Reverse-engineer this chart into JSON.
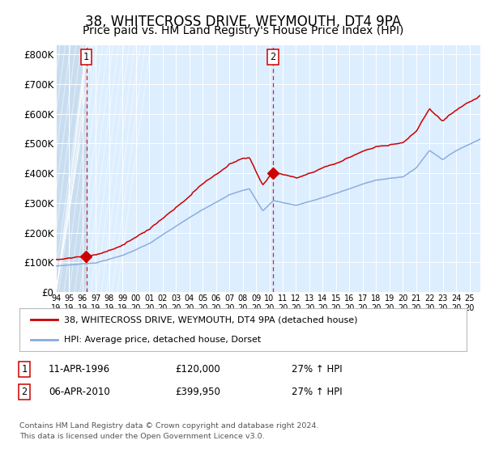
{
  "title": "38, WHITECROSS DRIVE, WEYMOUTH, DT4 9PA",
  "subtitle": "Price paid vs. HM Land Registry's House Price Index (HPI)",
  "title_fontsize": 12,
  "subtitle_fontsize": 10,
  "background_color": "#ffffff",
  "plot_bg_color": "#ddeeff",
  "legend_line1": "38, WHITECROSS DRIVE, WEYMOUTH, DT4 9PA (detached house)",
  "legend_line2": "HPI: Average price, detached house, Dorset",
  "red_line_color": "#cc0000",
  "blue_line_color": "#88aadd",
  "purchase1_decimal": 1996.28,
  "purchase1_price": 120000,
  "purchase2_decimal": 2010.27,
  "purchase2_price": 399950,
  "xlim": [
    1994.0,
    2025.8
  ],
  "ylim": [
    0,
    830000
  ],
  "yticks": [
    0,
    100000,
    200000,
    300000,
    400000,
    500000,
    600000,
    700000,
    800000
  ],
  "ytick_labels": [
    "£0",
    "£100K",
    "£200K",
    "£300K",
    "£400K",
    "£500K",
    "£600K",
    "£700K",
    "£800K"
  ],
  "xtick_years": [
    1994,
    1995,
    1996,
    1997,
    1998,
    1999,
    2000,
    2001,
    2002,
    2003,
    2004,
    2005,
    2006,
    2007,
    2008,
    2009,
    2010,
    2011,
    2012,
    2013,
    2014,
    2015,
    2016,
    2017,
    2018,
    2019,
    2020,
    2021,
    2022,
    2023,
    2024,
    2025
  ],
  "footer1": "Contains HM Land Registry data © Crown copyright and database right 2024.",
  "footer2": "This data is licensed under the Open Government Licence v3.0.",
  "note1_label": "1",
  "note1_date": "11-APR-1996",
  "note1_price": "£120,000",
  "note1_hpi": "27% ↑ HPI",
  "note2_label": "2",
  "note2_date": "06-APR-2010",
  "note2_price": "£399,950",
  "note2_hpi": "27% ↑ HPI"
}
